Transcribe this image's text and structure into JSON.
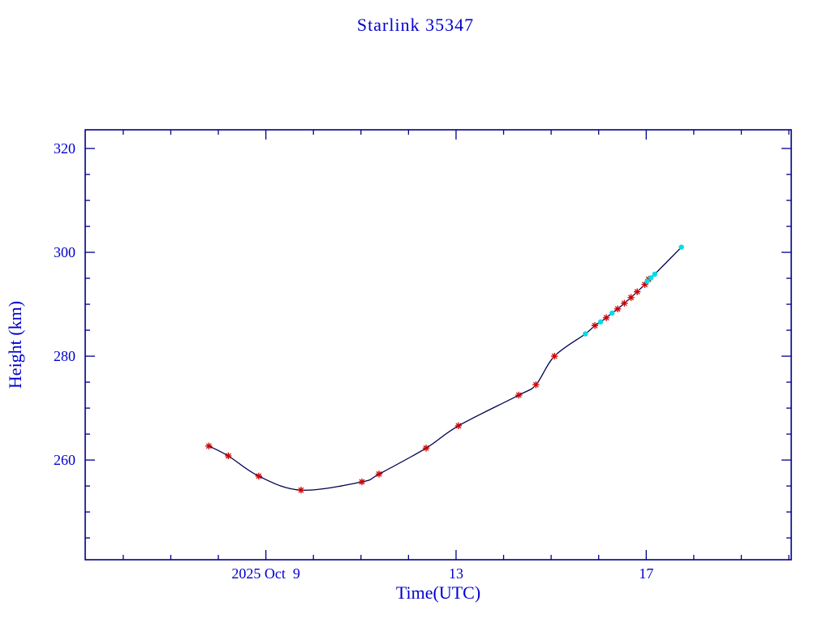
{
  "window": {
    "background": "#ffffff"
  },
  "chart_data": {
    "type": "line",
    "title": "Starlink 35347",
    "xlabel": "Time(UTC)",
    "ylabel": "Height (km)",
    "x_axis": {
      "unit": "day of October 2025 (UTC)",
      "lim": [
        5.2,
        20.05
      ],
      "major_ticks": [
        {
          "value": 9,
          "label": "2025 Oct  9"
        },
        {
          "value": 13,
          "label": "13"
        },
        {
          "value": 17,
          "label": "17"
        }
      ],
      "minor_tick_step": 1
    },
    "y_axis": {
      "unit": "km",
      "lim": [
        240.8,
        323.6
      ],
      "major_ticks": [
        {
          "value": 260,
          "label": "260"
        },
        {
          "value": 280,
          "label": "280"
        },
        {
          "value": 300,
          "label": "300"
        },
        {
          "value": 320,
          "label": "320"
        }
      ],
      "minor_tick_step": 5
    },
    "legend": "off",
    "grid": "off",
    "colors": {
      "text": "#0000CD",
      "axis": "#00008B",
      "line": "#000050",
      "observed_marker": "#CD0000",
      "predicted_marker": "#00DCE8"
    },
    "series": [
      {
        "name": "observed",
        "marker": "asterisk",
        "color_key": "observed_marker",
        "points": [
          [
            7.8,
            262.7
          ],
          [
            8.21,
            260.8
          ],
          [
            8.85,
            256.9
          ],
          [
            9.74,
            254.2
          ],
          [
            11.02,
            255.8
          ],
          [
            11.38,
            257.3
          ],
          [
            12.37,
            262.3
          ],
          [
            13.05,
            266.6
          ],
          [
            14.32,
            272.5
          ],
          [
            14.68,
            274.5
          ],
          [
            15.07,
            280.0
          ],
          [
            15.92,
            285.9
          ],
          [
            16.16,
            287.4
          ],
          [
            16.4,
            289.1
          ],
          [
            16.54,
            290.2
          ],
          [
            16.68,
            291.3
          ],
          [
            16.81,
            292.4
          ],
          [
            16.97,
            293.8
          ],
          [
            17.05,
            294.8
          ]
        ]
      },
      {
        "name": "predicted",
        "marker": "dot",
        "color_key": "predicted_marker",
        "points": [
          [
            15.72,
            284.3
          ],
          [
            16.04,
            286.6
          ],
          [
            16.28,
            288.3
          ],
          [
            17.02,
            294.4
          ],
          [
            17.1,
            295.1
          ],
          [
            17.18,
            295.8
          ],
          [
            17.74,
            301.0
          ]
        ]
      }
    ]
  }
}
